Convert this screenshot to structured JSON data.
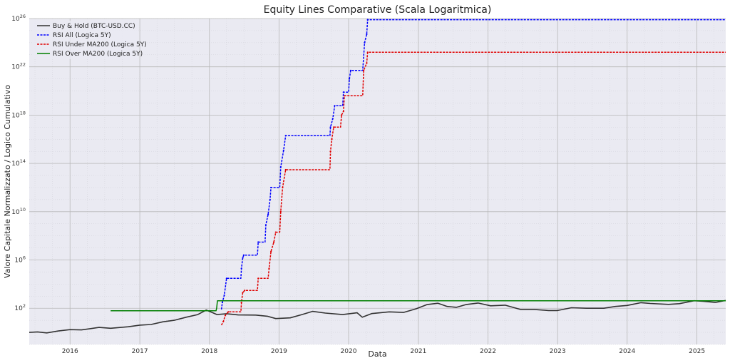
{
  "chart_data": {
    "type": "line",
    "title": "Equity Lines Comparative (Scala Logaritmica)",
    "xlabel": "Data",
    "ylabel": "Valore Capitale Normalizzato / Logico Cumulativo",
    "y_scale": "log",
    "xlim": [
      "2015-06-01",
      "2025-06-01"
    ],
    "ylim": [
      0.1,
      1e+26
    ],
    "grid": true,
    "legend_position": "top-left",
    "x_ticks": [
      "2016",
      "2017",
      "2018",
      "2019",
      "2020",
      "2021",
      "2022",
      "2023",
      "2024",
      "2025"
    ],
    "y_ticks": [
      {
        "value": 100,
        "label": "10",
        "exp": "2"
      },
      {
        "value": 1000000.0,
        "label": "10",
        "exp": "6"
      },
      {
        "value": 10000000000.0,
        "label": "10",
        "exp": "10"
      },
      {
        "value": 100000000000000.0,
        "label": "10",
        "exp": "14"
      },
      {
        "value": 1e+18,
        "label": "10",
        "exp": "18"
      },
      {
        "value": 1e+22,
        "label": "10",
        "exp": "22"
      },
      {
        "value": 1e+26,
        "label": "10",
        "exp": "26"
      }
    ],
    "series": [
      {
        "name": "Buy & Hold (BTC-USD.CC)",
        "color": "#333333",
        "style": "solid",
        "points": [
          [
            "2015-06-01",
            1.0
          ],
          [
            "2015-07-15",
            1.1
          ],
          [
            "2015-09-01",
            0.9
          ],
          [
            "2015-11-01",
            1.3
          ],
          [
            "2016-01-01",
            1.7
          ],
          [
            "2016-03-01",
            1.6
          ],
          [
            "2016-06-01",
            2.6
          ],
          [
            "2016-08-01",
            2.2
          ],
          [
            "2016-11-01",
            2.9
          ],
          [
            "2017-01-01",
            4.0
          ],
          [
            "2017-03-01",
            4.5
          ],
          [
            "2017-05-01",
            7.5
          ],
          [
            "2017-07-01",
            10
          ],
          [
            "2017-09-01",
            18
          ],
          [
            "2017-11-01",
            30
          ],
          [
            "2017-12-15",
            70
          ],
          [
            "2018-01-15",
            45
          ],
          [
            "2018-02-10",
            30
          ],
          [
            "2018-04-01",
            35
          ],
          [
            "2018-06-01",
            28
          ],
          [
            "2018-09-01",
            27
          ],
          [
            "2018-11-01",
            22
          ],
          [
            "2018-12-15",
            14
          ],
          [
            "2019-03-01",
            16
          ],
          [
            "2019-05-01",
            30
          ],
          [
            "2019-06-26",
            55
          ],
          [
            "2019-09-01",
            40
          ],
          [
            "2019-12-01",
            30
          ],
          [
            "2020-02-15",
            42
          ],
          [
            "2020-03-13",
            18
          ],
          [
            "2020-05-01",
            36
          ],
          [
            "2020-08-01",
            50
          ],
          [
            "2020-10-15",
            45
          ],
          [
            "2020-12-20",
            90
          ],
          [
            "2021-02-15",
            200
          ],
          [
            "2021-04-14",
            260
          ],
          [
            "2021-06-01",
            140
          ],
          [
            "2021-07-20",
            120
          ],
          [
            "2021-09-07",
            200
          ],
          [
            "2021-11-10",
            270
          ],
          [
            "2022-01-15",
            160
          ],
          [
            "2022-04-01",
            180
          ],
          [
            "2022-06-20",
            80
          ],
          [
            "2022-09-01",
            80
          ],
          [
            "2022-11-15",
            65
          ],
          [
            "2023-01-01",
            65
          ],
          [
            "2023-03-15",
            110
          ],
          [
            "2023-06-01",
            100
          ],
          [
            "2023-09-01",
            100
          ],
          [
            "2023-11-01",
            140
          ],
          [
            "2024-01-01",
            170
          ],
          [
            "2024-03-14",
            290
          ],
          [
            "2024-05-01",
            250
          ],
          [
            "2024-08-05",
            210
          ],
          [
            "2024-10-01",
            240
          ],
          [
            "2024-12-17",
            420
          ],
          [
            "2025-02-01",
            380
          ],
          [
            "2025-04-08",
            300
          ],
          [
            "2025-06-01",
            440
          ]
        ]
      },
      {
        "name": "RSI All (Logica 5Y)",
        "color": "#0000ff",
        "style": "dashed",
        "points": [
          [
            "2018-03-05",
            80
          ],
          [
            "2018-03-10",
            300
          ],
          [
            "2018-03-20",
            1200
          ],
          [
            "2018-04-01",
            30000
          ],
          [
            "2018-06-15",
            30000
          ],
          [
            "2018-06-18",
            200000
          ],
          [
            "2018-06-25",
            1500000
          ],
          [
            "2018-06-30",
            2500000
          ],
          [
            "2018-09-10",
            2500000
          ],
          [
            "2018-09-14",
            30000000
          ],
          [
            "2018-10-20",
            30000000
          ],
          [
            "2018-10-24",
            800000000.0
          ],
          [
            "2018-11-05",
            6000000000.0
          ],
          [
            "2018-11-15",
            100000000000.0
          ],
          [
            "2018-11-20",
            1000000000000.0
          ],
          [
            "2019-01-05",
            1000000000000.0
          ],
          [
            "2019-01-10",
            50000000000000.0
          ],
          [
            "2019-01-25",
            1200000000000000.0
          ],
          [
            "2019-02-05",
            2e+16
          ],
          [
            "2019-09-25",
            2e+16
          ],
          [
            "2019-09-28",
            1e+17
          ],
          [
            "2019-10-10",
            5e+17
          ],
          [
            "2019-10-20",
            6e+18
          ],
          [
            "2019-12-01",
            6e+18
          ],
          [
            "2019-12-05",
            8e+19
          ],
          [
            "2020-01-01",
            8e+19
          ],
          [
            "2020-01-05",
            1e+21
          ],
          [
            "2020-01-12",
            5e+21
          ],
          [
            "2020-03-15",
            5e+21
          ],
          [
            "2020-03-25",
            1e+24
          ],
          [
            "2020-04-05",
            5e+24
          ],
          [
            "2020-04-10",
            8e+25
          ],
          [
            "2025-06-01",
            8e+25
          ]
        ]
      },
      {
        "name": "RSI Under MA200 (Logica 5Y)",
        "color": "#e00000",
        "style": "dashed",
        "points": [
          [
            "2018-03-05",
            4
          ],
          [
            "2018-03-15",
            8
          ],
          [
            "2018-03-25",
            25
          ],
          [
            "2018-04-10",
            50
          ],
          [
            "2018-06-15",
            50
          ],
          [
            "2018-06-18",
            300
          ],
          [
            "2018-06-25",
            2000
          ],
          [
            "2018-07-05",
            3000
          ],
          [
            "2018-09-10",
            3000
          ],
          [
            "2018-09-14",
            30000
          ],
          [
            "2018-11-05",
            30000
          ],
          [
            "2018-11-10",
            200000
          ],
          [
            "2018-11-20",
            5000000
          ],
          [
            "2018-12-05",
            30000000
          ],
          [
            "2018-12-15",
            200000000.0
          ],
          [
            "2019-01-05",
            200000000.0
          ],
          [
            "2019-01-10",
            10000000000.0
          ],
          [
            "2019-01-20",
            1000000000000.0
          ],
          [
            "2019-02-05",
            30000000000000.0
          ],
          [
            "2019-09-25",
            30000000000000.0
          ],
          [
            "2019-09-28",
            1000000000000000.0
          ],
          [
            "2019-10-05",
            1e+16
          ],
          [
            "2019-10-15",
            1e+17
          ],
          [
            "2019-11-20",
            1e+17
          ],
          [
            "2019-11-25",
            1e+18
          ],
          [
            "2019-12-05",
            2e+18
          ],
          [
            "2019-12-10",
            4e+19
          ],
          [
            "2020-01-10",
            4e+19
          ],
          [
            "2020-03-15",
            4e+19
          ],
          [
            "2020-03-20",
            5e+21
          ],
          [
            "2020-04-05",
            2e+22
          ],
          [
            "2020-04-10",
            1.6e+23
          ],
          [
            "2025-06-01",
            1.6e+23
          ]
        ]
      },
      {
        "name": "RSI Over MA200 (Logica 5Y)",
        "color": "#007f00",
        "style": "solid",
        "points": [
          [
            "2016-08-01",
            62
          ],
          [
            "2018-02-05",
            62
          ],
          [
            "2018-02-08",
            100
          ],
          [
            "2018-02-12",
            420
          ],
          [
            "2025-06-01",
            420
          ]
        ]
      }
    ]
  }
}
